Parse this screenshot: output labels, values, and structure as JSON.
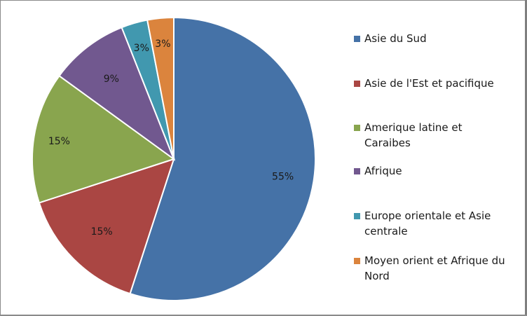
{
  "chart_data": {
    "type": "pie",
    "title": "",
    "categories": [
      "Asie du Sud",
      "Asie de l'Est et pacifique",
      "Amerique latine et Caraibes",
      "Afrique",
      "Europe orientale et Asie centrale",
      "Moyen orient et Afrique du Nord"
    ],
    "values": [
      55,
      15,
      15,
      9,
      3,
      3
    ],
    "labels": [
      "55%",
      "15%",
      "15%",
      "9%",
      "3%",
      "3%"
    ],
    "colors": [
      "#4572A7",
      "#AA4643",
      "#89A54E",
      "#71588F",
      "#4198AF",
      "#DB843D"
    ],
    "legend_position": "right",
    "start_angle": "12 o'clock, clockwise"
  },
  "legend": {
    "items": [
      {
        "label": "Asie du Sud",
        "color": "#4572A7"
      },
      {
        "label": "Asie de l'Est et pacifique",
        "color": "#AA4643"
      },
      {
        "label": "Amerique latine et Caraibes",
        "color": "#89A54E"
      },
      {
        "label": "Afrique",
        "color": "#71588F"
      },
      {
        "label": "Europe orientale et Asie centrale",
        "color": "#4198AF"
      },
      {
        "label": "Moyen orient et Afrique du Nord",
        "color": "#DB843D"
      }
    ]
  }
}
